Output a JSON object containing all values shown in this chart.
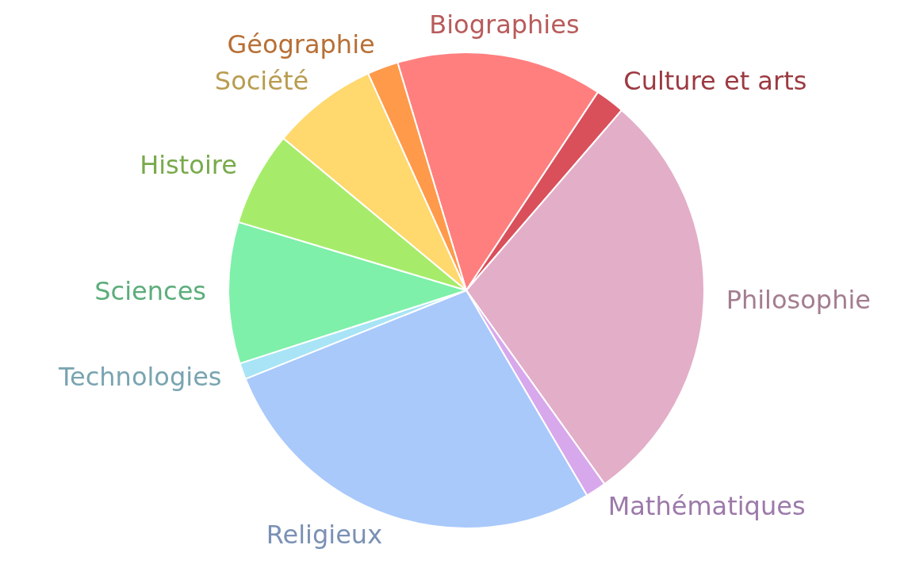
{
  "chart_data": {
    "type": "pie",
    "categories": [
      "Biographies",
      "Culture et arts",
      "Philosophie",
      "Mathématiques",
      "Religieux",
      "Technologies",
      "Sciences",
      "Histoire",
      "Société",
      "Géographie"
    ],
    "values": [
      14.0,
      2.0,
      28.8,
      1.4,
      27.4,
      1.1,
      9.6,
      6.4,
      7.2,
      2.1
    ],
    "colors": [
      "#ff7f7f",
      "#d9505a",
      "#e3aec8",
      "#d8a8ec",
      "#a9c9fb",
      "#a8e4f5",
      "#7ef0a9",
      "#a6ec6a",
      "#ffd86e",
      "#ff9a4a"
    ],
    "legend": false
  }
}
